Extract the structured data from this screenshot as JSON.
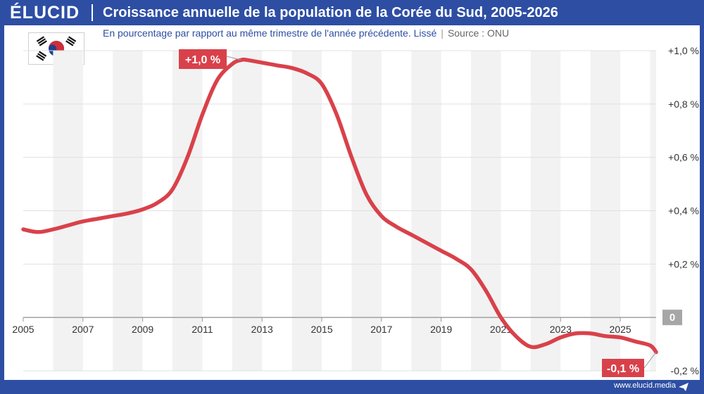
{
  "header": {
    "logo": "ÉLUCID",
    "title": "Croissance annuelle de la population de la Corée du Sud, 2005-2026",
    "subtitle": "En pourcentage par rapport au même trimestre de l'année précédente. Lissé",
    "separator": "|",
    "source": "Source : ONU"
  },
  "flag": {
    "country": "South Korea",
    "icon": "south-korea-flag-icon"
  },
  "footer": {
    "website": "www.elucid.media"
  },
  "colors": {
    "brand": "#2d4ea3",
    "series": "#d9414a",
    "stripe": "#f2f2f2",
    "zero_badge": "#a6a6a6"
  },
  "chart_data": {
    "type": "line",
    "title": "Croissance annuelle de la population de la Corée du Sud, 2005-2026",
    "subtitle": "En pourcentage par rapport au même trimestre de l'année précédente. Lissé",
    "xlim": [
      2005,
      2026.2
    ],
    "ylim": [
      -0.2,
      1.0
    ],
    "x_ticks": [
      2005,
      2007,
      2009,
      2011,
      2013,
      2015,
      2017,
      2019,
      2021,
      2023,
      2025
    ],
    "x_tick_labels": [
      "2005",
      "2007",
      "2009",
      "2011",
      "2013",
      "2015",
      "2017",
      "2019",
      "2021",
      "2023",
      "2025"
    ],
    "y_ticks": [
      -0.2,
      0,
      0.2,
      0.4,
      0.6,
      0.8,
      1.0
    ],
    "y_tick_labels": [
      "-0,2 %",
      "0",
      "+0,2 %",
      "+0,4 %",
      "+0,6 %",
      "+0,8 %",
      "+1,0 %"
    ],
    "grid": true,
    "series": [
      {
        "x": [
          2005.0,
          2005.5,
          2006.0,
          2006.5,
          2007.0,
          2007.5,
          2008.0,
          2008.5,
          2009.0,
          2009.5,
          2010.0,
          2010.5,
          2011.0,
          2011.5,
          2012.0,
          2012.3,
          2012.5,
          2013.0,
          2013.5,
          2014.0,
          2014.5,
          2015.0,
          2015.5,
          2016.0,
          2016.5,
          2017.0,
          2017.5,
          2018.0,
          2018.5,
          2019.0,
          2019.5,
          2020.0,
          2020.5,
          2021.0,
          2021.5,
          2022.0,
          2022.5,
          2023.0,
          2023.5,
          2024.0,
          2024.5,
          2025.0,
          2025.5,
          2026.0,
          2026.2
        ],
        "y": [
          0.33,
          0.32,
          0.33,
          0.345,
          0.36,
          0.37,
          0.38,
          0.39,
          0.405,
          0.43,
          0.48,
          0.6,
          0.76,
          0.89,
          0.95,
          0.965,
          0.965,
          0.955,
          0.945,
          0.935,
          0.915,
          0.875,
          0.76,
          0.6,
          0.46,
          0.38,
          0.34,
          0.31,
          0.28,
          0.25,
          0.22,
          0.18,
          0.1,
          0.0,
          -0.07,
          -0.11,
          -0.1,
          -0.075,
          -0.06,
          -0.06,
          -0.07,
          -0.075,
          -0.09,
          -0.105,
          -0.13
        ]
      }
    ],
    "annotations": [
      {
        "label": "+1,0 %",
        "x": 2012.3,
        "y": 0.965
      },
      {
        "label": "-0,1 %",
        "x": 2026.2,
        "y": -0.13
      }
    ],
    "zero_label": "0"
  }
}
